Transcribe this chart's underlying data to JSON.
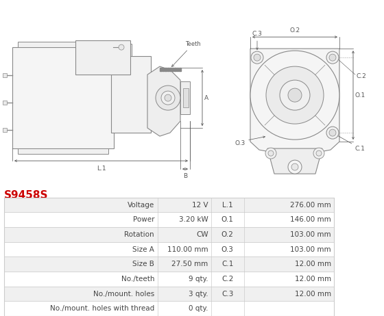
{
  "title": "S9458S",
  "title_color": "#cc0000",
  "bg_color": "#ffffff",
  "table_row_bg1": "#f0f0f0",
  "table_row_bg2": "#ffffff",
  "table_border_color": "#cccccc",
  "rows": [
    [
      "Voltage",
      "12 V",
      "L.1",
      "276.00 mm"
    ],
    [
      "Power",
      "3.20 kW",
      "O.1",
      "146.00 mm"
    ],
    [
      "Rotation",
      "CW",
      "O.2",
      "103.00 mm"
    ],
    [
      "Size A",
      "110.00 mm",
      "O.3",
      "103.00 mm"
    ],
    [
      "Size B",
      "27.50 mm",
      "C.1",
      "12.00 mm"
    ],
    [
      "No./teeth",
      "9 qty.",
      "C.2",
      "12.00 mm"
    ],
    [
      "No./mount. holes",
      "3 qty.",
      "C.3",
      "12.00 mm"
    ],
    [
      "No./mount. holes with thread",
      "0 qty.",
      "",
      ""
    ]
  ],
  "text_color": "#444444",
  "font_size_table": 7.5,
  "font_size_title": 11,
  "line_color": "#888888",
  "dim_color": "#555555"
}
